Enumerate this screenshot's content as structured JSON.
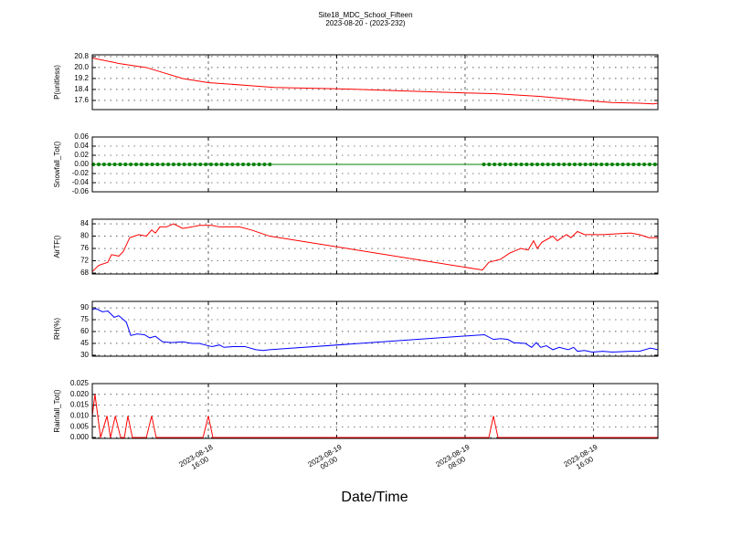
{
  "chart_data": [
    {
      "type": "line",
      "title": "Site18_MDC_School_Fifteen",
      "subtitle": "2023-08-20 - (2023-232)",
      "ylabel": "P(unitless)",
      "color": "#ff0000",
      "grid": true,
      "xlim": [
        "2023-08-18 08:46",
        "2023-08-19 20:01"
      ],
      "xticks": [
        "2023-08-18 16:00",
        "2023-08-19 00:00",
        "2023-08-19 08:00",
        "2023-08-19 16:00"
      ],
      "ylim": [
        16.93,
        20.93
      ],
      "yticks": [
        17.6,
        18.4,
        19.2,
        {
          "value": 20,
          "label": "20.0"
        },
        20.8
      ],
      "x": [
        "2023-08-18 08:46",
        "2023-08-18 10:25",
        "2023-08-18 12:08",
        "2023-08-18 13:16",
        "2023-08-18 14:24",
        "2023-08-18 16:00",
        "2023-08-18 18:23",
        "2023-08-18 20:06",
        "2023-08-19 00:05",
        "2023-08-19 04:04",
        "2023-08-19 08:00",
        "2023-08-19 09:46",
        "2023-08-19 12:37",
        "2023-08-19 15:27",
        "2023-08-19 17:10",
        "2023-08-19 18:52",
        "2023-08-19 19:44",
        "2023-08-19 20:01"
      ],
      "values": [
        20.7,
        20.3,
        20.0,
        19.6,
        19.2,
        18.9,
        18.7,
        18.55,
        18.45,
        18.3,
        18.15,
        18.1,
        17.9,
        17.6,
        17.45,
        17.4,
        17.35,
        17.4
      ]
    },
    {
      "type": "line",
      "ylabel": "Snowfall_Tot()",
      "color": "#008000",
      "markers": true,
      "grid": true,
      "xlim": [
        "2023-08-18 08:46",
        "2023-08-19 20:01"
      ],
      "xticks": [
        "2023-08-18 16:00",
        "2023-08-19 00:00",
        "2023-08-19 08:00",
        "2023-08-19 16:00"
      ],
      "ylim": [
        -0.06,
        0.06
      ],
      "yticks": [
        -0.06,
        -0.04,
        -0.02,
        {
          "value": 0,
          "label": "0.00"
        },
        0.02,
        0.04,
        0.06
      ],
      "x": [
        "2023-08-18 08:50",
        "2023-08-18 09:10",
        "2023-08-18 09:30",
        "2023-08-18 09:50",
        "2023-08-18 10:10",
        "2023-08-18 10:30",
        "2023-08-18 10:50",
        "2023-08-18 11:10",
        "2023-08-18 11:30",
        "2023-08-18 11:50",
        "2023-08-18 12:10",
        "2023-08-18 12:30",
        "2023-08-18 12:50",
        "2023-08-18 13:10",
        "2023-08-18 13:30",
        "2023-08-18 13:50",
        "2023-08-18 14:10",
        "2023-08-18 14:30",
        "2023-08-18 14:50",
        "2023-08-18 15:10",
        "2023-08-18 15:30",
        "2023-08-18 15:50",
        "2023-08-18 16:10",
        "2023-08-18 16:30",
        "2023-08-18 16:50",
        "2023-08-18 17:10",
        "2023-08-18 17:30",
        "2023-08-18 17:50",
        "2023-08-18 18:10",
        "2023-08-18 18:30",
        "2023-08-18 18:50",
        "2023-08-18 19:10",
        "2023-08-18 19:30",
        "2023-08-18 19:50",
        "2023-08-19 09:10",
        "2023-08-19 09:30",
        "2023-08-19 09:50",
        "2023-08-19 10:10",
        "2023-08-19 10:30",
        "2023-08-19 10:50",
        "2023-08-19 11:10",
        "2023-08-19 11:30",
        "2023-08-19 11:50",
        "2023-08-19 12:10",
        "2023-08-19 12:30",
        "2023-08-19 12:50",
        "2023-08-19 13:10",
        "2023-08-19 13:30",
        "2023-08-19 13:50",
        "2023-08-19 14:10",
        "2023-08-19 14:30",
        "2023-08-19 14:50",
        "2023-08-19 15:10",
        "2023-08-19 15:30",
        "2023-08-19 15:50",
        "2023-08-19 16:10",
        "2023-08-19 16:30",
        "2023-08-19 16:50",
        "2023-08-19 17:10",
        "2023-08-19 17:30",
        "2023-08-19 17:50",
        "2023-08-19 18:10",
        "2023-08-19 18:30",
        "2023-08-19 18:50",
        "2023-08-19 19:10",
        "2023-08-19 19:30",
        "2023-08-19 19:50"
      ],
      "values": [
        0,
        0,
        0,
        0,
        0,
        0,
        0,
        0,
        0,
        0,
        0,
        0,
        0,
        0,
        0,
        0,
        0,
        0,
        0,
        0,
        0,
        0,
        0,
        0,
        0,
        0,
        0,
        0,
        0,
        0,
        0,
        0,
        0,
        0,
        0,
        0,
        0,
        0,
        0,
        0,
        0,
        0,
        0,
        0,
        0,
        0,
        0,
        0,
        0,
        0,
        0,
        0,
        0,
        0,
        0,
        0,
        0,
        0,
        0,
        0,
        0,
        0,
        0,
        0,
        0,
        0,
        0
      ]
    },
    {
      "type": "line",
      "ylabel": "AirTF()",
      "color": "#ff0000",
      "grid": true,
      "xlim": [
        "2023-08-18 08:46",
        "2023-08-19 20:01"
      ],
      "xticks": [
        "2023-08-18 16:00",
        "2023-08-19 00:00",
        "2023-08-19 08:00",
        "2023-08-19 16:00"
      ],
      "ylim": [
        67.7,
        85.5
      ],
      "yticks": [
        68,
        72,
        76,
        80,
        84
      ],
      "x": [
        "2023-08-18 08:46",
        "2023-08-18 09:10",
        "2023-08-18 09:44",
        "2023-08-18 09:58",
        "2023-08-18 10:25",
        "2023-08-18 10:42",
        "2023-08-18 11:06",
        "2023-08-18 11:40",
        "2023-08-18 12:08",
        "2023-08-18 12:28",
        "2023-08-18 12:42",
        "2023-08-18 12:59",
        "2023-08-18 13:23",
        "2023-08-18 13:50",
        "2023-08-18 14:24",
        "2023-08-18 14:59",
        "2023-08-18 15:26",
        "2023-08-18 16:14",
        "2023-08-18 16:41",
        "2023-08-18 17:56",
        "2023-08-18 18:41",
        "2023-08-18 19:15",
        "2023-08-18 19:49",
        "2023-08-19 09:05",
        "2023-08-19 09:29",
        "2023-08-19 10:13",
        "2023-08-19 10:47",
        "2023-08-19 11:28",
        "2023-08-19 11:56",
        "2023-08-19 12:16",
        "2023-08-19 12:30",
        "2023-08-19 12:47",
        "2023-08-19 13:28",
        "2023-08-19 13:45",
        "2023-08-19 14:19",
        "2023-08-19 14:36",
        "2023-08-19 15:00",
        "2023-08-19 15:27",
        "2023-08-19 16:36",
        "2023-08-19 18:18",
        "2023-08-19 18:52",
        "2023-08-19 19:27",
        "2023-08-19 20:01"
      ],
      "values": [
        68.5,
        70.5,
        71.5,
        74,
        73.5,
        75,
        79.5,
        80.5,
        80,
        82,
        81,
        83,
        83,
        84,
        82.5,
        83,
        83.5,
        83.5,
        83,
        83,
        82,
        81,
        80,
        69,
        71.5,
        72.5,
        74.5,
        76,
        75.5,
        78.5,
        76,
        78,
        80,
        78.5,
        80.5,
        79.5,
        81.5,
        80.5,
        80.5,
        81,
        80.5,
        79.5,
        79.5
      ]
    },
    {
      "type": "line",
      "ylabel": "RH(%)",
      "color": "#0000ff",
      "grid": true,
      "xlim": [
        "2023-08-18 08:46",
        "2023-08-19 20:01"
      ],
      "xticks": [
        "2023-08-18 16:00",
        "2023-08-19 00:00",
        "2023-08-19 08:00",
        "2023-08-19 16:00"
      ],
      "ylim": [
        28.8,
        98.1
      ],
      "yticks": [
        30,
        45,
        60,
        75,
        90
      ],
      "x": [
        "2023-08-18 08:46",
        "2023-08-18 09:00",
        "2023-08-18 09:24",
        "2023-08-18 09:44",
        "2023-08-18 10:08",
        "2023-08-18 10:25",
        "2023-08-18 10:53",
        "2023-08-18 11:10",
        "2023-08-18 11:34",
        "2023-08-18 12:01",
        "2023-08-18 12:21",
        "2023-08-18 12:42",
        "2023-08-18 13:09",
        "2023-08-18 13:43",
        "2023-08-18 14:24",
        "2023-08-18 14:59",
        "2023-08-18 15:26",
        "2023-08-18 16:00",
        "2023-08-18 16:14",
        "2023-08-18 16:41",
        "2023-08-18 16:58",
        "2023-08-18 17:32",
        "2023-08-18 18:17",
        "2023-08-18 18:58",
        "2023-08-18 19:25",
        "2023-08-18 19:49",
        "2023-08-19 09:12",
        "2023-08-19 09:46",
        "2023-08-19 10:13",
        "2023-08-19 10:40",
        "2023-08-19 11:01",
        "2023-08-19 11:45",
        "2023-08-19 12:09",
        "2023-08-19 12:26",
        "2023-08-19 12:43",
        "2023-08-19 13:04",
        "2023-08-19 13:28",
        "2023-08-19 13:52",
        "2023-08-19 14:26",
        "2023-08-19 14:46",
        "2023-08-19 15:00",
        "2023-08-19 15:27",
        "2023-08-19 15:55",
        "2023-08-19 16:36",
        "2023-08-19 17:10",
        "2023-08-19 18:18",
        "2023-08-19 18:52",
        "2023-08-19 19:33",
        "2023-08-19 20:01"
      ],
      "values": [
        88,
        89,
        85,
        86,
        78,
        80,
        72,
        55,
        57,
        56,
        52,
        54,
        47,
        46,
        47,
        45,
        45,
        42,
        41,
        43,
        40,
        41,
        41,
        37,
        36,
        37,
        56,
        50,
        51,
        50,
        46,
        45,
        40,
        46,
        40,
        42,
        37,
        40,
        37,
        40,
        35,
        36,
        34,
        35,
        34,
        35,
        35,
        39,
        37
      ]
    },
    {
      "type": "line",
      "ylabel": "Rainfall_Tot()",
      "xlabel": "Date/Time",
      "color": "#ff0000",
      "grid": true,
      "xlim": [
        "2023-08-18 08:46",
        "2023-08-19 20:01"
      ],
      "xticks": [
        {
          "value": "2023-08-18 16:00",
          "label": "2023-08-18\n16:00"
        },
        {
          "value": "2023-08-19 00:00",
          "label": "2023-08-19\n00:00"
        },
        {
          "value": "2023-08-19 08:00",
          "label": "2023-08-19\n08:00"
        },
        {
          "value": "2023-08-19 16:00",
          "label": "2023-08-19\n16:00"
        }
      ],
      "ylim": [
        -0.0004,
        0.025
      ],
      "yticks": [
        {
          "value": 0,
          "label": "0.000"
        },
        0.005,
        {
          "value": 0.01,
          "label": "0.010"
        },
        0.015,
        {
          "value": 0.02,
          "label": "0.020"
        },
        0.025
      ],
      "x": [
        "2023-08-18 08:46",
        "2023-08-18 08:56",
        "2023-08-18 09:17",
        "2023-08-18 09:41",
        "2023-08-18 09:54",
        "2023-08-18 10:12",
        "2023-08-18 10:32",
        "2023-08-18 10:46",
        "2023-08-18 10:59",
        "2023-08-18 11:16",
        "2023-08-18 12:08",
        "2023-08-18 12:28",
        "2023-08-18 12:45",
        "2023-08-18 15:40",
        "2023-08-18 16:00",
        "2023-08-18 16:17",
        "2023-08-18 19:49",
        "2023-08-19 09:29",
        "2023-08-19 09:46",
        "2023-08-19 10:03",
        "2023-08-19 20:01"
      ],
      "values": [
        0.01,
        0.02,
        0,
        0.01,
        0,
        0.01,
        0,
        0,
        0.01,
        0,
        0,
        0.01,
        0,
        0,
        0.01,
        0,
        0,
        0,
        0.01,
        0,
        0
      ]
    }
  ]
}
